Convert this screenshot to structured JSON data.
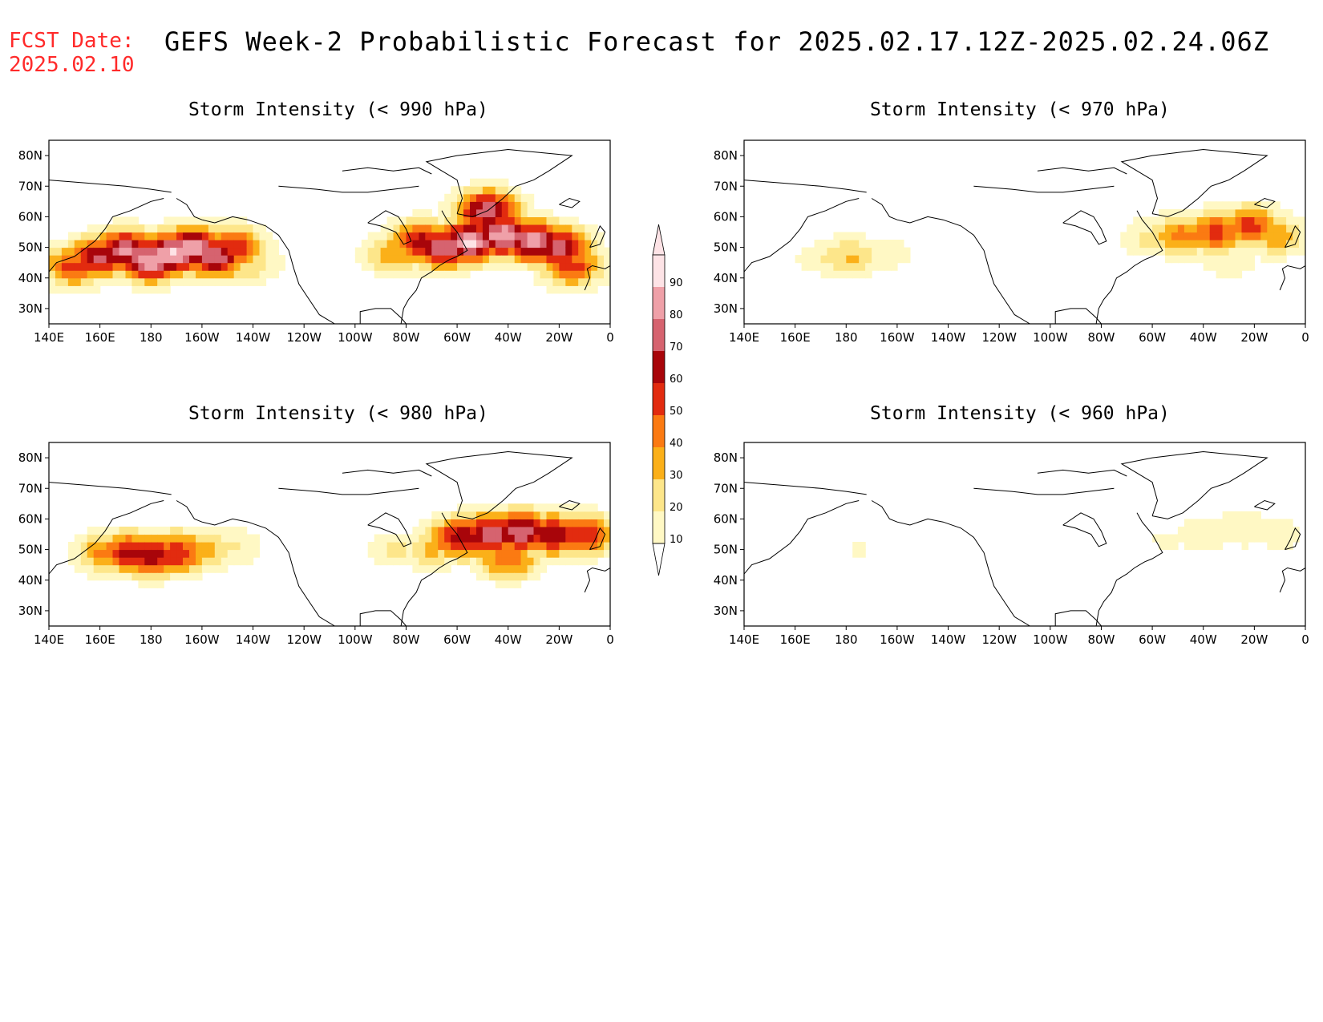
{
  "header": {
    "fcst_label": "FCST Date:",
    "fcst_date": "2025.02.10",
    "title": "GEFS Week-2 Probabilistic Forecast for 2025.02.17.12Z-2025.02.24.06Z"
  },
  "colors": {
    "fcst_text": "#ff2a2a",
    "levels": [
      "#fff8c4",
      "#fde68a",
      "#fbb019",
      "#fb7a12",
      "#e22b0f",
      "#a8050a",
      "#d6636f",
      "#efa0a8",
      "#fde3e6"
    ]
  },
  "colorbar": {
    "labels": [
      "10",
      "20",
      "30",
      "40",
      "50",
      "60",
      "70",
      "80",
      "90"
    ]
  },
  "axes": {
    "x_ticks": [
      "140E",
      "160E",
      "180",
      "160W",
      "140W",
      "120W",
      "100W",
      "80W",
      "60W",
      "40W",
      "20W",
      "0"
    ],
    "y_ticks": [
      "80N",
      "70N",
      "60N",
      "50N",
      "40N",
      "30N"
    ]
  },
  "chart_data": [
    {
      "type": "heatmap",
      "title": "Storm Intensity (< 990 hPa)",
      "xlim": [
        140,
        360
      ],
      "ylim": [
        25,
        85
      ],
      "blobs": [
        {
          "lon": 188,
          "lat": 48,
          "value": 92
        },
        {
          "lon": 180,
          "lat": 46,
          "value": 90
        },
        {
          "lon": 196,
          "lat": 50,
          "value": 88
        },
        {
          "lon": 170,
          "lat": 49,
          "value": 82
        },
        {
          "lon": 205,
          "lat": 47,
          "value": 78
        },
        {
          "lon": 160,
          "lat": 47,
          "value": 72
        },
        {
          "lon": 212,
          "lat": 50,
          "value": 60
        },
        {
          "lon": 150,
          "lat": 44,
          "value": 55
        },
        {
          "lon": 218,
          "lat": 45,
          "value": 30
        },
        {
          "lon": 305,
          "lat": 52,
          "value": 92
        },
        {
          "lon": 318,
          "lat": 54,
          "value": 90
        },
        {
          "lon": 330,
          "lat": 52,
          "value": 86
        },
        {
          "lon": 295,
          "lat": 50,
          "value": 80
        },
        {
          "lon": 340,
          "lat": 50,
          "value": 75
        },
        {
          "lon": 286,
          "lat": 52,
          "value": 65
        },
        {
          "lon": 276,
          "lat": 48,
          "value": 40
        },
        {
          "lon": 312,
          "lat": 62,
          "value": 78
        },
        {
          "lon": 345,
          "lat": 44,
          "value": 55
        }
      ]
    },
    {
      "type": "heatmap",
      "title": "Storm Intensity (< 970 hPa)",
      "xlim": [
        140,
        360
      ],
      "ylim": [
        25,
        85
      ],
      "blobs": [
        {
          "lon": 182,
          "lat": 47,
          "value": 32
        },
        {
          "lon": 175,
          "lat": 47,
          "value": 22
        },
        {
          "lon": 195,
          "lat": 48,
          "value": 18
        },
        {
          "lon": 168,
          "lat": 46,
          "value": 14
        },
        {
          "lon": 325,
          "lat": 55,
          "value": 55
        },
        {
          "lon": 338,
          "lat": 57,
          "value": 55
        },
        {
          "lon": 312,
          "lat": 54,
          "value": 45
        },
        {
          "lon": 348,
          "lat": 54,
          "value": 38
        },
        {
          "lon": 300,
          "lat": 53,
          "value": 25
        },
        {
          "lon": 330,
          "lat": 46,
          "value": 18
        }
      ]
    },
    {
      "type": "heatmap",
      "title": "Storm Intensity (< 980 hPa)",
      "xlim": [
        140,
        360
      ],
      "ylim": [
        25,
        85
      ],
      "blobs": [
        {
          "lon": 180,
          "lat": 48,
          "value": 68
        },
        {
          "lon": 172,
          "lat": 49,
          "value": 64
        },
        {
          "lon": 190,
          "lat": 49,
          "value": 60
        },
        {
          "lon": 163,
          "lat": 49,
          "value": 45
        },
        {
          "lon": 200,
          "lat": 50,
          "value": 35
        },
        {
          "lon": 212,
          "lat": 51,
          "value": 22
        },
        {
          "lon": 313,
          "lat": 55,
          "value": 80
        },
        {
          "lon": 325,
          "lat": 56,
          "value": 80
        },
        {
          "lon": 302,
          "lat": 54,
          "value": 70
        },
        {
          "lon": 338,
          "lat": 55,
          "value": 70
        },
        {
          "lon": 350,
          "lat": 55,
          "value": 58
        },
        {
          "lon": 320,
          "lat": 47,
          "value": 50
        },
        {
          "lon": 290,
          "lat": 50,
          "value": 32
        },
        {
          "lon": 276,
          "lat": 50,
          "value": 22
        }
      ]
    },
    {
      "type": "heatmap",
      "title": "Storm Intensity (< 960 hPa)",
      "xlim": [
        140,
        360
      ],
      "ylim": [
        25,
        85
      ],
      "blobs": [
        {
          "lon": 320,
          "lat": 55,
          "value": 18
        },
        {
          "lon": 336,
          "lat": 57,
          "value": 20
        },
        {
          "lon": 350,
          "lat": 55,
          "value": 16
        },
        {
          "lon": 306,
          "lat": 53,
          "value": 12
        },
        {
          "lon": 185,
          "lat": 50,
          "value": 11
        }
      ]
    }
  ]
}
